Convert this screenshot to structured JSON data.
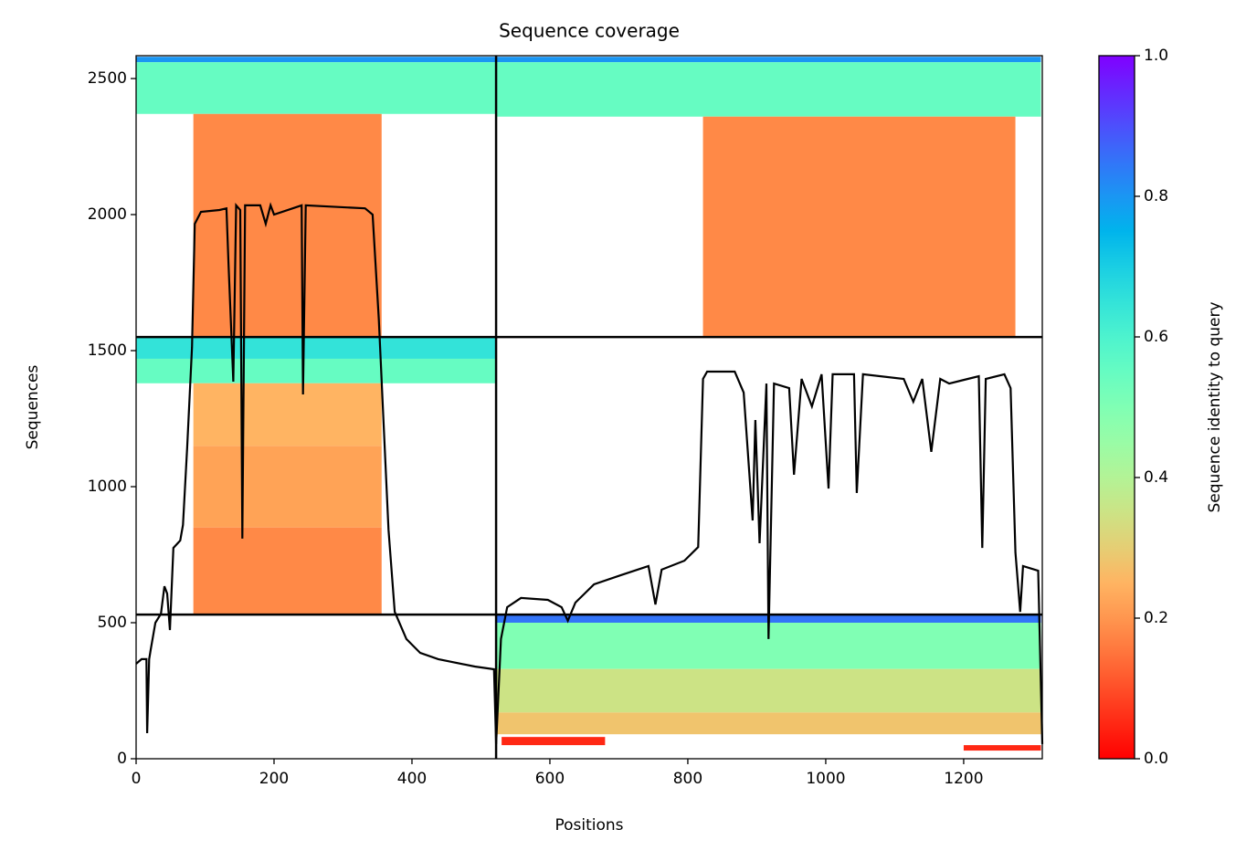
{
  "chart_data": {
    "type": "coverage",
    "title": "Sequence coverage",
    "xlabel": "Positions",
    "ylabel": "Sequences",
    "colorbar_label": "Sequence identity to query",
    "colormap": "rainbow_r",
    "xlim": [
      0,
      1314
    ],
    "ylim": [
      0,
      2584
    ],
    "xticks": [
      0,
      200,
      400,
      600,
      800,
      1000,
      1200
    ],
    "yticks": [
      0,
      500,
      1000,
      1500,
      2000,
      2500
    ],
    "clim": [
      0,
      1
    ],
    "cticks": [
      {
        "value": 0,
        "label": "0.0"
      },
      {
        "value": 0.2,
        "label": "0.2"
      },
      {
        "value": 0.4,
        "label": "0.4"
      },
      {
        "value": 0.6,
        "label": "0.6"
      },
      {
        "value": 0.8,
        "label": "0.8"
      },
      {
        "value": 1,
        "label": "1.0"
      }
    ],
    "blocks": [
      {
        "x": [
          0,
          522
        ],
        "y": [
          2560,
          2580
        ],
        "identity": 0.8
      },
      {
        "x": [
          0,
          522
        ],
        "y": [
          2370,
          2560
        ],
        "identity": 0.55
      },
      {
        "x": [
          83,
          356
        ],
        "y": [
          1550,
          2370
        ],
        "identity": 0.18
      },
      {
        "x": [
          522,
          1312
        ],
        "y": [
          2560,
          2580
        ],
        "identity": 0.8
      },
      {
        "x": [
          522,
          1312
        ],
        "y": [
          2360,
          2560
        ],
        "identity": 0.55
      },
      {
        "x": [
          822,
          1275
        ],
        "y": [
          1550,
          2360
        ],
        "identity": 0.18
      },
      {
        "x": [
          0,
          522
        ],
        "y": [
          1470,
          1550
        ],
        "identity": 0.65
      },
      {
        "x": [
          0,
          522
        ],
        "y": [
          1380,
          1470
        ],
        "identity": 0.55
      },
      {
        "x": [
          83,
          356
        ],
        "y": [
          1150,
          1380
        ],
        "identity": 0.25
      },
      {
        "x": [
          83,
          356
        ],
        "y": [
          850,
          1150
        ],
        "identity": 0.22
      },
      {
        "x": [
          83,
          356
        ],
        "y": [
          530,
          850
        ],
        "identity": 0.18
      },
      {
        "x": [
          522,
          1312
        ],
        "y": [
          500,
          530
        ],
        "identity": 0.85
      },
      {
        "x": [
          522,
          1312
        ],
        "y": [
          330,
          500
        ],
        "identity": 0.5
      },
      {
        "x": [
          522,
          1312
        ],
        "y": [
          170,
          330
        ],
        "identity": 0.35
      },
      {
        "x": [
          522,
          1312
        ],
        "y": [
          90,
          170
        ],
        "identity": 0.28
      },
      {
        "x": [
          530,
          680
        ],
        "y": [
          50,
          80
        ],
        "identity": 0.05
      },
      {
        "x": [
          1200,
          1312
        ],
        "y": [
          30,
          50
        ],
        "identity": 0.05
      }
    ],
    "dividers": {
      "x": [
        522
      ],
      "y": [
        530,
        1550
      ]
    },
    "coverage": {
      "color": "#000000",
      "x": [
        0,
        8,
        15,
        16,
        19,
        21,
        28,
        36,
        41,
        45,
        49,
        54,
        64,
        68,
        74,
        81,
        85,
        94,
        121,
        131,
        134,
        141,
        145,
        151,
        154,
        158,
        180,
        188,
        195,
        200,
        240,
        242,
        246,
        332,
        343,
        352,
        366,
        375,
        392,
        412,
        438,
        491,
        519,
        522,
        529,
        538,
        558,
        597,
        617,
        626,
        637,
        664,
        703,
        743,
        753,
        762,
        795,
        815,
        822,
        828,
        868,
        881,
        894,
        898,
        904,
        914,
        917,
        925,
        947,
        954,
        965,
        980,
        994,
        1004,
        1010,
        1041,
        1045,
        1054,
        1113,
        1127,
        1140,
        1153,
        1166,
        1179,
        1206,
        1222,
        1227,
        1232,
        1259,
        1268,
        1275,
        1282,
        1286,
        1308,
        1314
      ],
      "values": [
        349,
        366,
        366,
        94,
        366,
        399,
        500,
        533,
        634,
        607,
        473,
        775,
        802,
        859,
        1144,
        1513,
        1966,
        2010,
        2017,
        2023,
        1815,
        1386,
        2034,
        2017,
        809,
        2034,
        2034,
        1966,
        2034,
        2000,
        2034,
        1339,
        2034,
        2023,
        2000,
        1614,
        842,
        540,
        440,
        389,
        366,
        339,
        329,
        54,
        440,
        557,
        591,
        584,
        557,
        507,
        574,
        641,
        675,
        708,
        567,
        695,
        728,
        778,
        1396,
        1423,
        1423,
        1346,
        876,
        1245,
        792,
        1379,
        440,
        1379,
        1362,
        1044,
        1396,
        1295,
        1413,
        993,
        1413,
        1413,
        977,
        1413,
        1396,
        1312,
        1396,
        1128,
        1396,
        1379,
        1396,
        1406,
        775,
        1396,
        1413,
        1362,
        758,
        540,
        708,
        691,
        54
      ]
    }
  }
}
